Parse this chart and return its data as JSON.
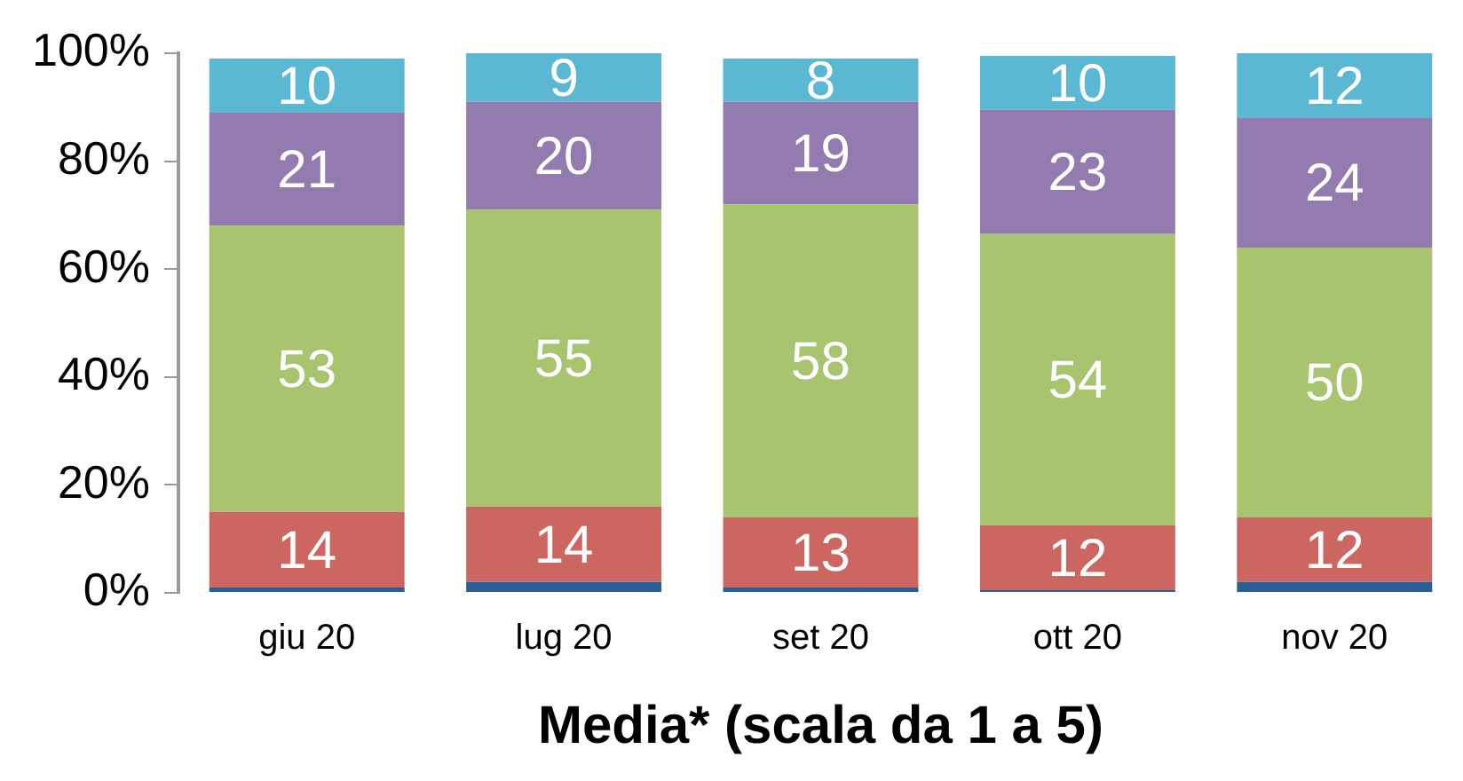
{
  "chart_data": {
    "type": "bar",
    "stacked": true,
    "xlabel": "Media* (scala da 1 a 5)",
    "categories": [
      "giu 20",
      "lug 20",
      "set 20",
      "ott 20",
      "nov 20"
    ],
    "series": [
      {
        "color": "#2a5f95",
        "values": [
          1,
          2,
          1,
          0.5,
          2
        ],
        "value_labels": [
          null,
          null,
          null,
          null,
          null
        ]
      },
      {
        "color": "#cc6660",
        "values": [
          14,
          14,
          13,
          12,
          12
        ],
        "value_labels": [
          "14",
          "14",
          "13",
          "12",
          "12"
        ]
      },
      {
        "color": "#a8c46e",
        "values": [
          53,
          55,
          58,
          54,
          50
        ],
        "value_labels": [
          "53",
          "55",
          "58",
          "54",
          "50"
        ]
      },
      {
        "color": "#937bb0",
        "values": [
          21,
          20,
          19,
          23,
          24
        ],
        "value_labels": [
          "21",
          "20",
          "19",
          "23",
          "24"
        ]
      },
      {
        "color": "#5bb8d3",
        "values": [
          10,
          9,
          8,
          10,
          12
        ],
        "value_labels": [
          "10",
          "9",
          "8",
          "10",
          "12"
        ]
      }
    ],
    "ylim": [
      0,
      100
    ],
    "yticks": [
      {
        "value": 0,
        "label": "0%"
      },
      {
        "value": 20,
        "label": "20%"
      },
      {
        "value": 40,
        "label": "40%"
      },
      {
        "value": 60,
        "label": "60%"
      },
      {
        "value": 80,
        "label": "80%"
      },
      {
        "value": 100,
        "label": "100%"
      }
    ],
    "grid": false,
    "legend": false
  }
}
